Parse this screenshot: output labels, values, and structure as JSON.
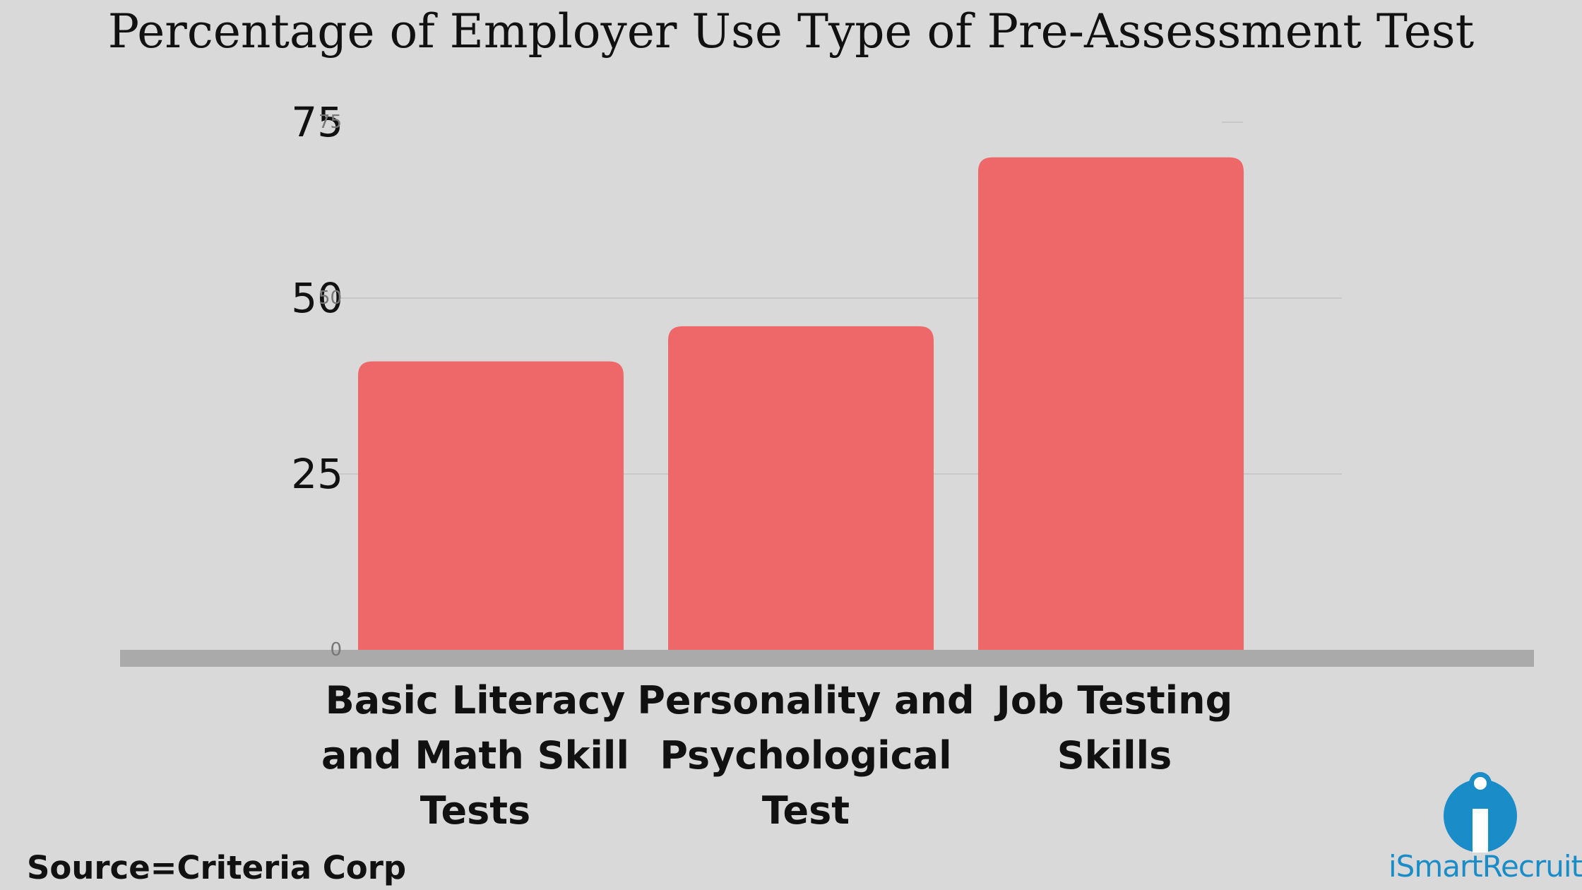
{
  "chart_data": {
    "type": "bar",
    "title": "Percentage of Employer Use Type of Pre-Assessment Test",
    "categories": [
      [
        "Basic Literacy",
        "and Math Skill",
        "Tests"
      ],
      [
        "Personality and",
        "Psychological",
        "Test"
      ],
      [
        "Job Testing",
        "Skills"
      ]
    ],
    "values": [
      41,
      46,
      70
    ],
    "ylim": [
      0,
      75
    ],
    "yticks": [
      25,
      50,
      75
    ],
    "yticks_small": [
      0,
      50,
      75
    ],
    "xlabel": "",
    "ylabel": "",
    "grid": true,
    "legend": "none",
    "colors": {
      "bar": "#ee6869",
      "axis": "#aaaaaa",
      "grid": "#c8c8c8",
      "background": "#d9d9d9"
    }
  },
  "footer": {
    "source": "Source=Criteria Corp"
  },
  "logo": {
    "text": "iSmartRecruit",
    "icon": "ismartrecruit-logo-icon",
    "color": "#1a8dc8"
  }
}
